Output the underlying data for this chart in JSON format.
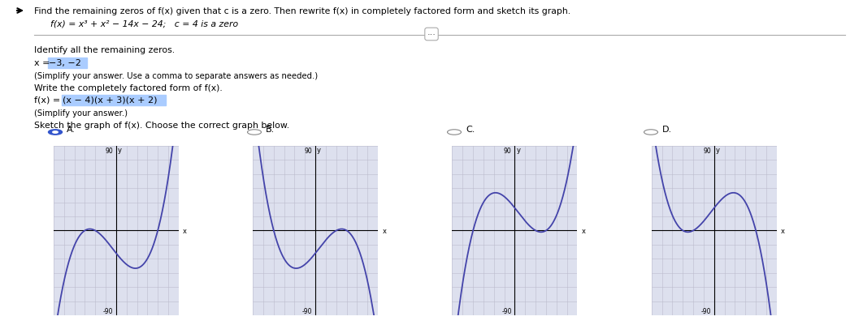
{
  "title_text": "Find the remaining zeros of f(x) given that c is a zero. Then rewrite f(x) in completely factored form and sketch its graph.",
  "function_text": "f(x) = x³ + x² − 14x − 24;   c = 4 is a zero",
  "identify_text": "Identify all the remaining zeros.",
  "zeros_answer": "−3, −2",
  "simplify_text1": "(Simplify your answer. Use a comma to separate answers as needed.)",
  "factored_label": "Write the completely factored form of f(x).",
  "factored_answer": "(x − 4)(x + 3)(x + 2)",
  "simplify_text2": "(Simplify your answer.)",
  "sketch_label": "Sketch the graph of f(x). Choose the correct graph below.",
  "graph_labels": [
    "A.",
    "B.",
    "C.",
    "D."
  ],
  "correct_answer": 0,
  "page_bg": "#ffffff",
  "curve_color": "#4444aa",
  "graph_bg": "#dde0ee",
  "grid_color": "#bbbbcc",
  "highlight_color": "#aaccff",
  "radio_selected": "#3355cc",
  "radio_unselected": "#ffffff",
  "radio_border": "#888888"
}
